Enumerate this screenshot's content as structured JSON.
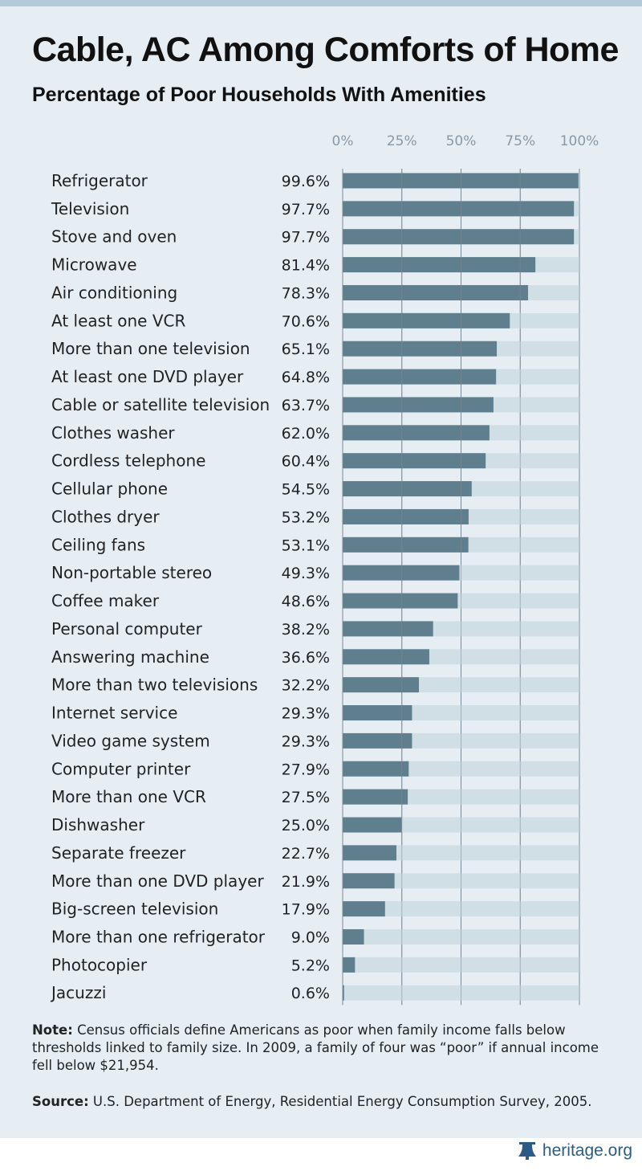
{
  "header": {
    "title": "Cable, AC Among Comforts of Home",
    "subtitle": "Percentage of Poor Households With Amenities"
  },
  "chart_data": {
    "type": "bar",
    "orientation": "horizontal",
    "xlim": [
      0,
      100
    ],
    "ticks": [
      "0%",
      "25%",
      "50%",
      "75%",
      "100%"
    ],
    "grid": true,
    "bar_color": "#5f7f8f",
    "track_color": "#d0dfe6",
    "categories": [
      "Refrigerator",
      "Television",
      "Stove and oven",
      "Microwave",
      "Air conditioning",
      "At least one VCR",
      "More than one television",
      "At least one DVD player",
      "Cable or satellite television",
      "Clothes washer",
      "Cordless telephone",
      "Cellular phone",
      "Clothes dryer",
      "Ceiling fans",
      "Non-portable stereo",
      "Coffee maker",
      "Personal computer",
      "Answering machine",
      "More than two televisions",
      "Internet service",
      "Video game system",
      "Computer printer",
      "More than one VCR",
      "Dishwasher",
      "Separate freezer",
      "More than one DVD player",
      "Big-screen television",
      "More than one refrigerator",
      "Photocopier",
      "Jacuzzi"
    ],
    "values": [
      99.6,
      97.7,
      97.7,
      81.4,
      78.3,
      70.6,
      65.1,
      64.8,
      63.7,
      62.0,
      60.4,
      54.5,
      53.2,
      53.1,
      49.3,
      48.6,
      38.2,
      36.6,
      32.2,
      29.3,
      29.3,
      27.9,
      27.5,
      25.0,
      22.7,
      21.9,
      17.9,
      9.0,
      5.2,
      0.6
    ],
    "value_labels": [
      "99.6%",
      "97.7%",
      "97.7%",
      "81.4%",
      "78.3%",
      "70.6%",
      "65.1%",
      "64.8%",
      "63.7%",
      "62.0%",
      "60.4%",
      "54.5%",
      "53.2%",
      "53.1%",
      "49.3%",
      "48.6%",
      "38.2%",
      "36.6%",
      "32.2%",
      "29.3%",
      "29.3%",
      "27.9%",
      "27.5%",
      "25.0%",
      "22.7%",
      "21.9%",
      "17.9%",
      "9.0%",
      "5.2%",
      "0.6%"
    ]
  },
  "note": {
    "label": "Note:",
    "text": " Census officials define Americans as poor when family income falls below thresholds linked to family size. In 2009, a family of four was “poor” if annual income fell below $21,954."
  },
  "source": {
    "label": "Source:",
    "text": " U.S. Department of Energy, Residential Energy Consumption Survey, 2005."
  },
  "footer": {
    "logo_icon": "liberty-bell-icon",
    "logo_text": "heritage.org",
    "brand_color": "#2c5c86"
  }
}
